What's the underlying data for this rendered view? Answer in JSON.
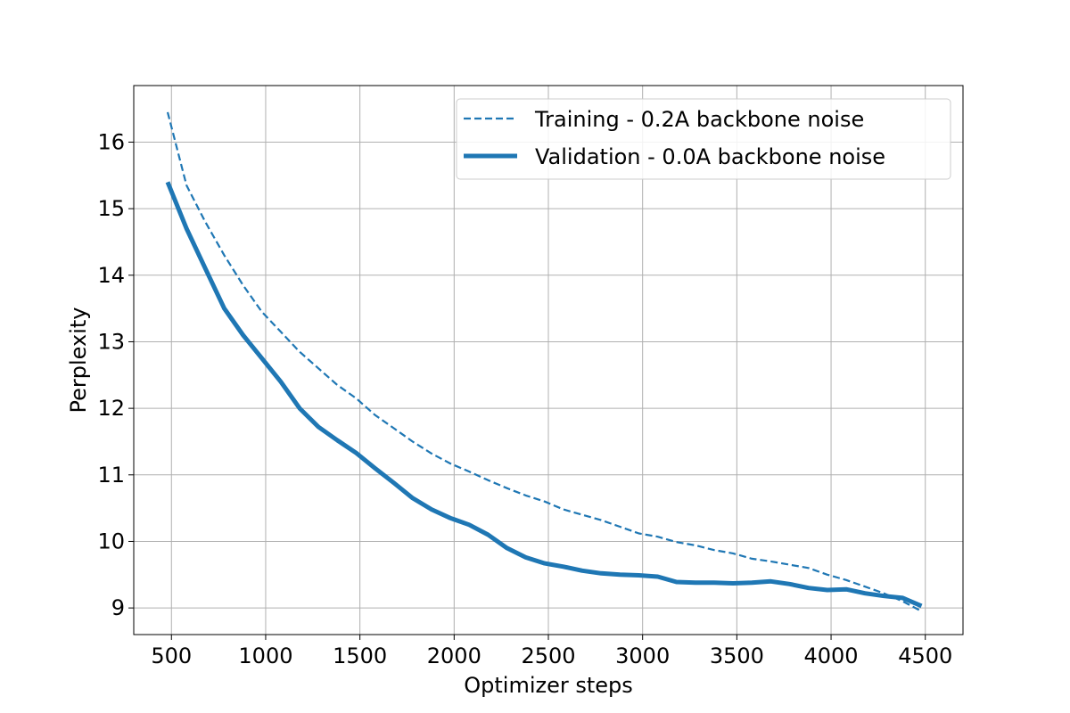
{
  "chart_data": {
    "type": "line",
    "title": "",
    "xlabel": "Optimizer steps",
    "ylabel": "Perplexity",
    "xlim": [
      300,
      4700
    ],
    "ylim": [
      8.6,
      16.85
    ],
    "xticks": [
      500,
      1000,
      1500,
      2000,
      2500,
      3000,
      3500,
      4000,
      4500
    ],
    "yticks": [
      9,
      10,
      11,
      12,
      13,
      14,
      15,
      16
    ],
    "grid": true,
    "legend_position": "top-right",
    "series": [
      {
        "name": "Training - 0.2A backbone noise",
        "color": "#1f77b4",
        "style": "dashed",
        "x": [
          480,
          580,
          680,
          780,
          880,
          980,
          1080,
          1180,
          1280,
          1380,
          1480,
          1580,
          1680,
          1780,
          1880,
          1980,
          2080,
          2180,
          2280,
          2380,
          2480,
          2580,
          2680,
          2780,
          2880,
          2980,
          3080,
          3180,
          3280,
          3380,
          3480,
          3580,
          3680,
          3780,
          3880,
          3980,
          4080,
          4180,
          4280,
          4380,
          4480
        ],
        "y": [
          16.45,
          15.35,
          14.8,
          14.3,
          13.85,
          13.45,
          13.15,
          12.85,
          12.6,
          12.35,
          12.15,
          11.9,
          11.7,
          11.5,
          11.32,
          11.17,
          11.05,
          10.92,
          10.8,
          10.69,
          10.6,
          10.48,
          10.4,
          10.32,
          10.22,
          10.12,
          10.07,
          9.99,
          9.94,
          9.87,
          9.82,
          9.74,
          9.7,
          9.65,
          9.6,
          9.5,
          9.42,
          9.32,
          9.22,
          9.1,
          8.95
        ]
      },
      {
        "name": "Validation - 0.0A backbone noise",
        "color": "#1f77b4",
        "style": "solid",
        "x": [
          480,
          580,
          680,
          780,
          880,
          980,
          1080,
          1180,
          1280,
          1380,
          1480,
          1580,
          1680,
          1780,
          1880,
          1980,
          2080,
          2180,
          2280,
          2380,
          2480,
          2580,
          2680,
          2780,
          2880,
          2980,
          3080,
          3180,
          3280,
          3380,
          3480,
          3580,
          3680,
          3780,
          3880,
          3980,
          4080,
          4180,
          4280,
          4380,
          4480
        ],
        "y": [
          15.4,
          14.7,
          14.1,
          13.5,
          13.1,
          12.75,
          12.4,
          12.0,
          11.72,
          11.52,
          11.33,
          11.1,
          10.88,
          10.65,
          10.48,
          10.35,
          10.25,
          10.1,
          9.9,
          9.76,
          9.67,
          9.62,
          9.56,
          9.52,
          9.5,
          9.49,
          9.47,
          9.39,
          9.38,
          9.38,
          9.37,
          9.38,
          9.4,
          9.36,
          9.3,
          9.27,
          9.28,
          9.22,
          9.18,
          9.15,
          9.03
        ]
      }
    ]
  }
}
